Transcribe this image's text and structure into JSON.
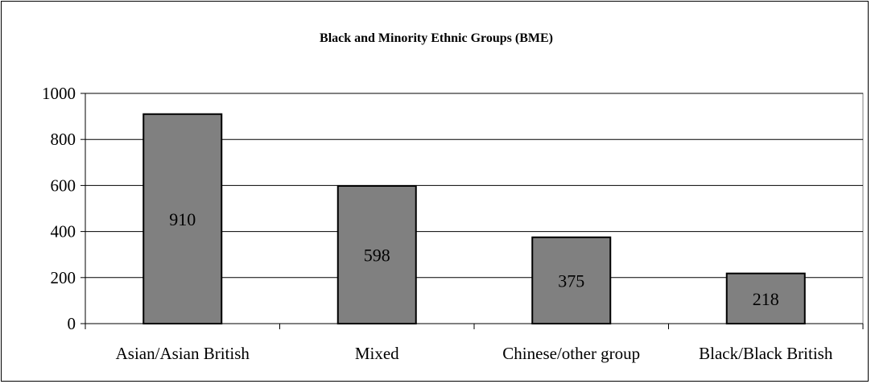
{
  "chart_data": {
    "type": "bar",
    "title": "Black and Minority Ethnic Groups (BME)",
    "categories": [
      "Asian/Asian British",
      "Mixed",
      "Chinese/other group",
      "Black/Black British"
    ],
    "values": [
      910,
      598,
      375,
      218
    ],
    "data_labels": [
      "910",
      "598",
      "375",
      "218"
    ],
    "y_ticks": [
      "0",
      "200",
      "400",
      "600",
      "800",
      "1000"
    ],
    "ylim": [
      0,
      1000
    ],
    "grid": true,
    "legend": "none",
    "bar_color": "#808080"
  }
}
